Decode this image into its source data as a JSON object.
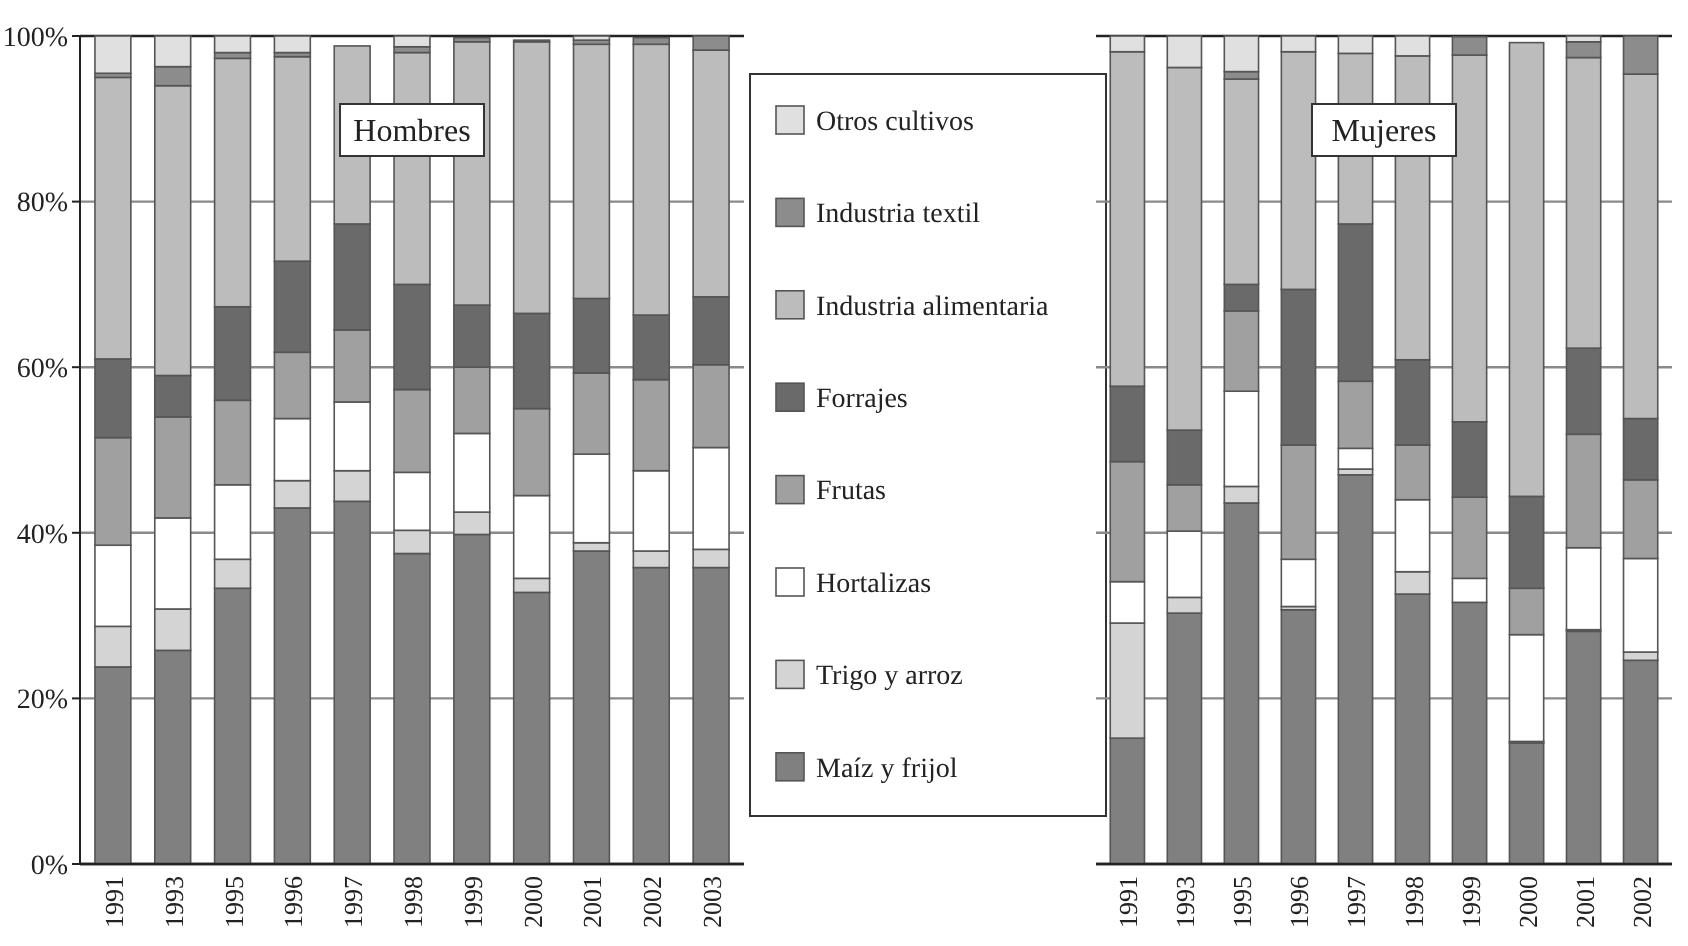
{
  "chart_data": [
    {
      "type": "bar",
      "stacked": true,
      "title": "Hombres",
      "categories": [
        "1991",
        "1993",
        "1995",
        "1996",
        "1997",
        "1998",
        "1999",
        "2000",
        "2001",
        "2002",
        "2003"
      ],
      "ylim": [
        0,
        100
      ],
      "yticks": [
        {
          "value": 0,
          "label": "0%"
        },
        {
          "value": 20,
          "label": "20%"
        },
        {
          "value": 40,
          "label": "40%"
        },
        {
          "value": 60,
          "label": "60%"
        },
        {
          "value": 80,
          "label": "80%"
        },
        {
          "value": 100,
          "label": "100%"
        }
      ],
      "grid": "y",
      "legend": "right",
      "series": [
        {
          "name": "Maíz y frijol",
          "color": "#808080",
          "values": [
            23.8,
            25.8,
            33.3,
            43,
            43.8,
            37.5,
            39.8,
            32.8,
            37.8,
            35.8,
            35.8
          ]
        },
        {
          "name": "Trigo y arroz",
          "color": "#d4d4d4",
          "values": [
            4.9,
            5,
            3.5,
            3.3,
            3.7,
            2.8,
            2.7,
            1.7,
            1,
            2,
            2.2
          ]
        },
        {
          "name": "Hortalizas",
          "color": "#ffffff",
          "values": [
            9.8,
            11,
            9,
            7.5,
            8.3,
            7,
            9.5,
            10,
            10.7,
            9.7,
            12.3
          ]
        },
        {
          "name": "Frutas",
          "color": "#a0a0a0",
          "values": [
            13,
            12.2,
            10.2,
            8,
            8.7,
            10,
            8,
            10.5,
            9.8,
            11,
            10
          ]
        },
        {
          "name": "Forrajes",
          "color": "#6a6a6a",
          "values": [
            9.5,
            5,
            11.3,
            11,
            12.8,
            12.7,
            7.5,
            11.5,
            9,
            7.8,
            8.2
          ]
        },
        {
          "name": "Industria alimentaria",
          "color": "#bcbcbc",
          "values": [
            34,
            35,
            30,
            24.7,
            21.5,
            28,
            31.8,
            32.8,
            30.7,
            32.7,
            29.8
          ]
        },
        {
          "name": "Industria textil",
          "color": "#8c8c8c",
          "values": [
            0.5,
            2.3,
            0.7,
            0.5,
            0,
            0.7,
            0.5,
            0.2,
            0.5,
            0.8,
            1.7
          ]
        },
        {
          "name": "Otros cultivos",
          "color": "#e0e0e0",
          "values": [
            4.5,
            3.7,
            2,
            2,
            0,
            1.3,
            null,
            0,
            0.5,
            null,
            0
          ]
        }
      ]
    },
    {
      "type": "bar",
      "stacked": true,
      "title": "Mujeres",
      "categories": [
        "1991",
        "1993",
        "1995",
        "1996",
        "1997",
        "1998",
        "1999",
        "2000",
        "2001",
        "2002"
      ],
      "ylim": [
        0,
        100
      ],
      "yticks": [
        {
          "value": 0,
          "label": null
        },
        {
          "value": 20,
          "label": null
        },
        {
          "value": 40,
          "label": null
        },
        {
          "value": 60,
          "label": null
        },
        {
          "value": 80,
          "label": null
        },
        {
          "value": 100,
          "label": null
        }
      ],
      "tick_labels": "x",
      "grid": "y",
      "series": [
        {
          "color": "#808080",
          "values": [
            15.2,
            30.3,
            43.6,
            30.7,
            47,
            32.6,
            31.6,
            14.6,
            28.1,
            24.6
          ]
        },
        {
          "color": "#d4d4d4",
          "values": [
            13.9,
            1.9,
            2,
            0.4,
            0.7,
            2.7,
            null,
            0.2,
            0.2,
            1
          ]
        },
        {
          "color": "#ffffff",
          "values": [
            5,
            8,
            11.5,
            5.7,
            2.5,
            8.7,
            2.9,
            12.9,
            9.9,
            11.3
          ]
        },
        {
          "color": "#a0a0a0",
          "values": [
            14.5,
            5.6,
            9.7,
            13.8,
            8.1,
            6.6,
            9.8,
            5.6,
            13.7,
            9.5
          ]
        },
        {
          "color": "#6a6a6a",
          "values": [
            9.1,
            6.6,
            3.2,
            18.8,
            19,
            10.3,
            9.1,
            11.1,
            10.4,
            7.4
          ]
        },
        {
          "color": "#bcbcbc",
          "values": [
            40.4,
            43.8,
            24.8,
            28.7,
            20.6,
            36.7,
            44.3,
            54.8,
            35.1,
            41.6
          ]
        },
        {
          "color": "#8c8c8c",
          "values": [
            0,
            0,
            0.9,
            0,
            0,
            0,
            2.2,
            0,
            1.9,
            4.6
          ]
        },
        {
          "color": "#e0e0e0",
          "values": [
            1.9,
            3.8,
            4.3,
            1.9,
            2.1,
            2.4,
            0,
            0,
            0.7,
            0
          ]
        }
      ]
    }
  ]
}
